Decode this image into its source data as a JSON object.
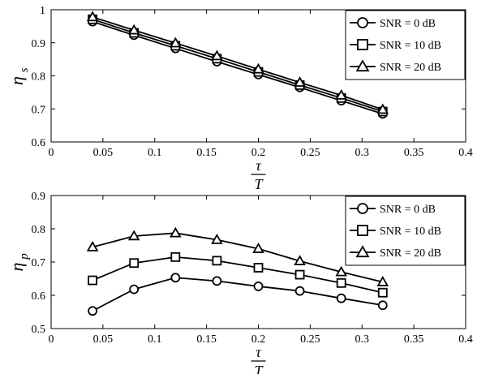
{
  "chart_data": [
    {
      "type": "line",
      "x": [
        0.04,
        0.08,
        0.12,
        0.16,
        0.2,
        0.24,
        0.28,
        0.32
      ],
      "xlim": [
        0,
        0.4
      ],
      "ylim": [
        0.6,
        1.0
      ],
      "xticks": [
        "0",
        "0.05",
        "0.1",
        "0.15",
        "0.2",
        "0.25",
        "0.3",
        "0.35",
        "0.4"
      ],
      "yticks": [
        "0.6",
        "0.7",
        "0.8",
        "0.9",
        "1"
      ],
      "ylabel": "η",
      "ylabel_sub": "s",
      "xlabel_num": "τ",
      "xlabel_den": "T",
      "legend_position": "top-right",
      "grid": false,
      "series": [
        {
          "name": "SNR = 0 dB",
          "marker": "circle",
          "values": [
            0.964,
            0.923,
            0.883,
            0.843,
            0.804,
            0.765,
            0.725,
            0.685
          ]
        },
        {
          "name": "SNR = 10 dB",
          "marker": "square",
          "values": [
            0.971,
            0.93,
            0.891,
            0.852,
            0.812,
            0.772,
            0.733,
            0.692
          ]
        },
        {
          "name": "SNR = 20 dB",
          "marker": "triangle",
          "values": [
            0.978,
            0.938,
            0.899,
            0.86,
            0.82,
            0.78,
            0.741,
            0.698
          ]
        }
      ]
    },
    {
      "type": "line",
      "x": [
        0.04,
        0.08,
        0.12,
        0.16,
        0.2,
        0.24,
        0.28,
        0.32
      ],
      "xlim": [
        0,
        0.4
      ],
      "ylim": [
        0.5,
        0.9
      ],
      "xticks": [
        "0",
        "0.05",
        "0.1",
        "0.15",
        "0.2",
        "0.25",
        "0.3",
        "0.35",
        "0.4"
      ],
      "yticks": [
        "0.5",
        "0.6",
        "0.7",
        "0.8",
        "0.9"
      ],
      "ylabel": "η",
      "ylabel_sub": "p",
      "xlabel_num": "τ",
      "xlabel_den": "T",
      "legend_position": "top-right",
      "grid": false,
      "series": [
        {
          "name": "SNR = 0 dB",
          "marker": "circle",
          "values": [
            0.553,
            0.618,
            0.653,
            0.643,
            0.627,
            0.613,
            0.591,
            0.57
          ]
        },
        {
          "name": "SNR = 10 dB",
          "marker": "square",
          "values": [
            0.645,
            0.697,
            0.715,
            0.704,
            0.683,
            0.662,
            0.637,
            0.608
          ]
        },
        {
          "name": "SNR = 20 dB",
          "marker": "triangle",
          "values": [
            0.745,
            0.778,
            0.787,
            0.767,
            0.74,
            0.703,
            0.67,
            0.64
          ]
        }
      ]
    }
  ]
}
